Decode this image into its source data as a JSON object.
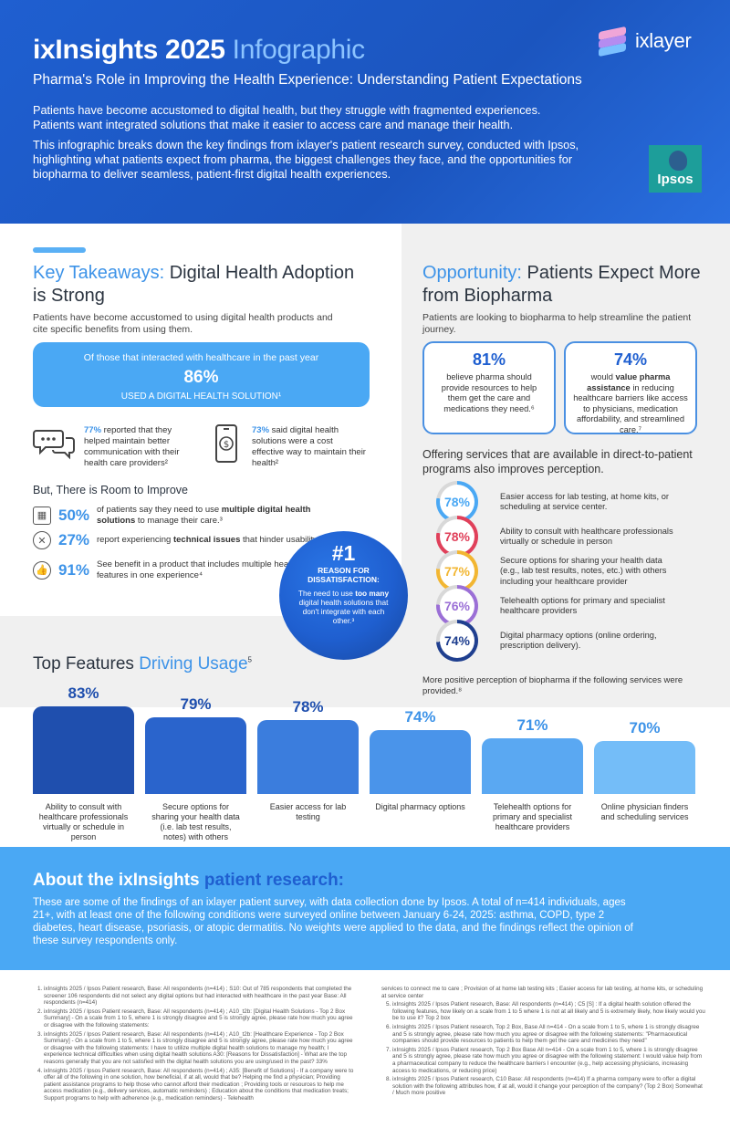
{
  "header": {
    "title_main": "ixInsights 2025",
    "title_highlight": "Infographic",
    "subtitle": "Pharma's Role in Improving the Health Experience: Understanding Patient Expectations",
    "para1": "Patients have become accustomed to digital health, but they struggle with fragmented experiences. Patients want integrated solutions that make it easier to access care and manage their health.",
    "para2": "This infographic breaks down the key findings from ixlayer's patient research survey, conducted with Ipsos, highlighting what patients expect from pharma, the biggest challenges they face, and the opportunities for biopharma to deliver seamless, patient-first digital health experiences.",
    "logo_text": "ixlayer",
    "partner_logo": "Ipsos"
  },
  "key_takeaways": {
    "title_hl": "Key Takeaways:",
    "title_rest": "Digital Health Adoption is Strong",
    "desc": "Patients have become accustomed to using digital health products and cite specific benefits from using them.",
    "box_line1": "Of those that interacted with healthcare in the past year",
    "box_pct": "86%",
    "box_line3": "USED A DIGITAL HEALTH SOLUTION¹",
    "stat1_pct": "77%",
    "stat1_txt": " reported that they helped maintain better communication with their health care providers²",
    "stat2_pct": "73%",
    "stat2_txt": " said digital health solutions were a cost effective way to maintain their health²"
  },
  "room": {
    "title": "But, There is Room to Improve",
    "items": [
      {
        "pct": "50%",
        "pre": "of patients say they need to use ",
        "bold": "multiple digital health solutions",
        "post": " to manage their care.³"
      },
      {
        "pct": "27%",
        "pre": "report experiencing ",
        "bold": "technical issues",
        "post": " that hinder usability.³"
      },
      {
        "pct": "91%",
        "pre": "See benefit in a product that includes multiple health features in one experience⁴",
        "bold": "",
        "post": ""
      }
    ]
  },
  "reason": {
    "big": "#1",
    "head": "REASON FOR DISSATISFACTION:",
    "pre": "The need to use ",
    "bold": "too many",
    "post": " digital health solutions that don't integrate with each other.³"
  },
  "opportunity": {
    "title_hl": "Opportunity:",
    "title_rest": "Patients Expect More from Biopharma",
    "desc": "Patients are looking to biopharma to help streamline the patient journey.",
    "card1_pct": "81%",
    "card1_txt": "believe pharma should provide resources to help them get the care and medications they need.⁶",
    "card2_pct": "74%",
    "card2_pre": "would ",
    "card2_bold": "value pharma assistance",
    "card2_post": " in reducing healthcare barriers like access to physicians, medication affordability, and streamlined care.⁷",
    "offer_title": "Offering services that are available in direct-to-patient programs also improves perception.",
    "services": [
      {
        "pct": "78%",
        "value": 78,
        "color": "#4aa8f4",
        "txt": "Easier access for lab testing, at home kits, or scheduling at service center."
      },
      {
        "pct": "78%",
        "value": 78,
        "color": "#e0405a",
        "txt": "Ability to consult with healthcare professionals virtually or schedule in person"
      },
      {
        "pct": "77%",
        "value": 77,
        "color": "#f2b632",
        "txt": "Secure options for sharing your health data (e.g., lab test results, notes, etc.) with others including your healthcare provider"
      },
      {
        "pct": "76%",
        "value": 76,
        "color": "#9b6fd6",
        "txt": "Telehealth options for primary and specialist healthcare providers"
      },
      {
        "pct": "74%",
        "value": 74,
        "color": "#1f3f8f",
        "txt": "Digital pharmacy options (online ordering, prescription delivery)."
      }
    ],
    "foot": "More positive perception of biopharma if the following services were provided.⁸"
  },
  "top_features": {
    "title_main": "Top Features",
    "title_hl": "Driving Usage",
    "title_sup": "5"
  },
  "chart_data": {
    "type": "bar",
    "title": "Top Features Driving Usage",
    "categories": [
      "Ability to consult with healthcare professionals virtually or schedule in person",
      "Secure options for sharing your health data (i.e. lab test results, notes) with others",
      "Easier access for lab testing",
      "Digital pharmacy options",
      "Telehealth options for primary and specialist healthcare providers",
      "Online physician finders and scheduling services"
    ],
    "values": [
      83,
      79,
      78,
      74,
      71,
      70
    ],
    "labels": [
      "83%",
      "79%",
      "78%",
      "74%",
      "71%",
      "70%"
    ],
    "colors": [
      "#1f4fae",
      "#2a64cc",
      "#3b7ddd",
      "#4a94ea",
      "#5aa8f2",
      "#74bdf8"
    ],
    "ylim": [
      0,
      100
    ]
  },
  "about": {
    "title_main": "About the ixInsights",
    "title_hl": "patient research:",
    "text": "These are some of the findings of an ixlayer patient survey, with data collection done by Ipsos. A total of n=414 individuals, ages 21+, with at least one of the following conditions were surveyed online between January 6-24, 2025: asthma, COPD, type 2 diabetes, heart disease, psoriasis, or atopic dermatitis. No weights were applied to the data, and the findings reflect the opinion of these survey respondents only."
  },
  "footnotes_left": [
    "ixInsights 2025 / Ipsos Patient research, Base: All respondents (n=414) ; S10: Out of 785 respondents that completed the screener 106 respondents did not select any digital options but had interacted with healthcare in the past year Base: All respondents (n=414)",
    "ixInsights 2025 / Ipsos Patient research, Base: All respondents (n=414) ; A10_t2b: [Digital Health Solutions - Top 2 Box Summary] - On a scale from 1 to 5, where 1 is strongly disagree and 5 is strongly agree, please rate how much you agree or disagree with the following statements:",
    "ixInsights 2025 / Ipsos Patient research, Base: All respondents (n=414) ; A10_t2b: [Healthcare Experience - Top 2 Box Summary] - On a scale from 1 to 5, where 1 is strongly disagree and 5 is strongly agree, please rate how much you agree or disagree with the following statements: I have to utilize multiple digital health solutions to manage my health; I experience technical difficulties when using digital health solutions A30: [Reasons for Dissatisfaction] - What are the top reasons generally that you are not satisfied with the digital health solutions you are using/used in the past? 33%",
    "ixInsights 2025 / Ipsos Patient research, Base: All respondents (n=414) ; A35: [Benefit of Solutions] - If a company were to offer all of the following in one solution, how beneficial, if at all, would that be? Helping me find a physician; Providing patient assistance programs to help those who cannot afford their medication ; Providing tools or resources to help me access medication (e.g., delivery services, automatic reminders) ; Education about the conditions that medication treats; Support programs to help with adherence (e.g., medication reminders) - Telehealth"
  ],
  "footnotes_right_cont": "services to connect me to care ; Provision of at home lab testing kits ; Easier access for lab testing, at home kits, or scheduling at service center",
  "footnotes_right": [
    "ixInsights 2025 / Ipsos Patient research, Base: All respondents (n=414) ; C5 [S] : If a digital health solution offered the following features, how likely on a scale from 1 to 5 where 1 is not at all likely and 5 is extremely likely, how likely would you be to use it? Top 2 box",
    "ixInsights 2025 / Ipsos Patient research, Top 2 Box, Base All n=414 - On a scale from 1 to 5, where 1 is strongly disagree and 5 is strongly agree, please rate how much you agree or disagree with the following statements: \"Pharmaceutical companies should provide resources to patients to help them get the care and medicines they need\"",
    "ixInsights 2025 / Ipsos Patient research, Top 2 Box Base All n=414 - On a scale from 1 to 5, where 1 is strongly disagree and 5 is strongly agree, please rate how much you agree or disagree with the following statement: I would value help from a pharmaceutical company to reduce the healthcare barriers I encounter (e.g., help accessing physicians, increasing access to medications, or reducing price)",
    "ixInsights 2025 / Ipsos Patient research, C10 Base: All respondents (n=414) If a pharma company were to offer a digital solution with the following attributes how, if at all, would it change your perception of the company? (Top 2 Box) Somewhat / Much more positive"
  ]
}
